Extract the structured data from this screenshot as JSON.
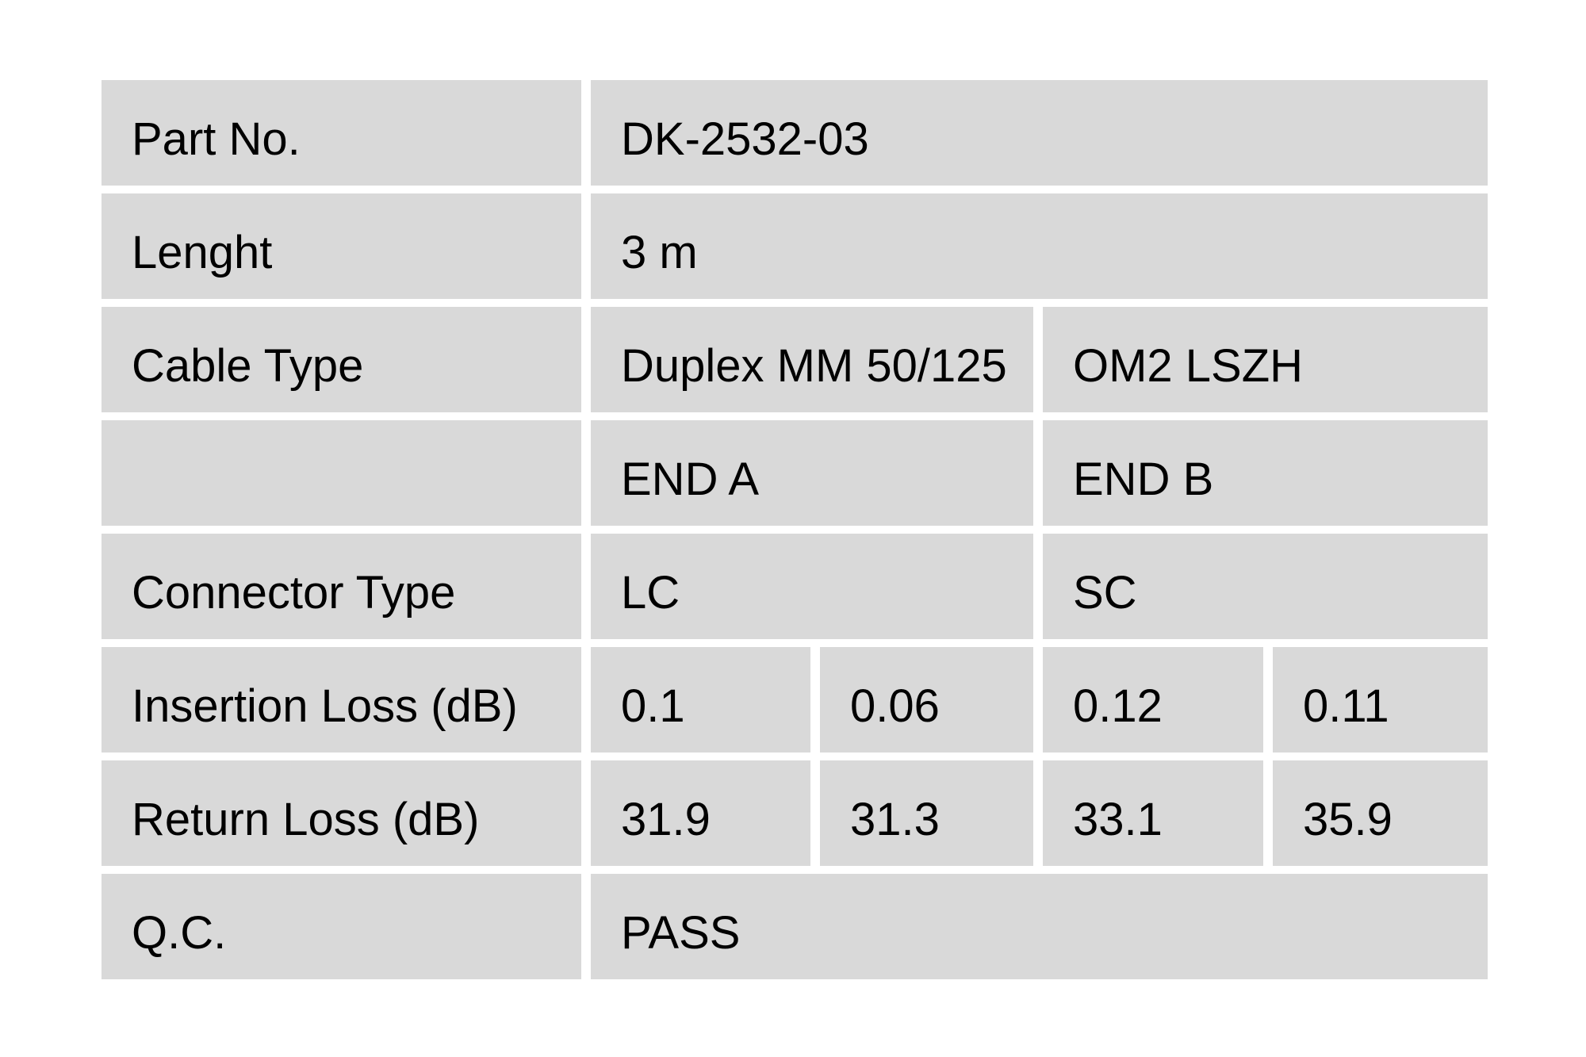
{
  "colors": {
    "page_background": "#ffffff",
    "cell_background": "#d9d9d9",
    "text": "#000000"
  },
  "table": {
    "rows": [
      {
        "label": "Part No.",
        "values": [
          {
            "text": "DK-2532-03"
          }
        ]
      },
      {
        "label": "Lenght",
        "values": [
          {
            "text": "3 m"
          }
        ]
      },
      {
        "label": "Cable Type",
        "values": [
          {
            "text": "Duplex MM 50/125"
          },
          {
            "text": "OM2 LSZH"
          }
        ]
      },
      {
        "label": "",
        "values": [
          {
            "text": "END A"
          },
          {
            "text": "END B"
          }
        ]
      },
      {
        "label": "Connector Type",
        "values": [
          {
            "text": "LC"
          },
          {
            "text": "SC"
          }
        ]
      },
      {
        "label": "Insertion Loss (dB)",
        "values": [
          {
            "text": "0.1"
          },
          {
            "text": "0.06"
          },
          {
            "text": "0.12"
          },
          {
            "text": "0.11"
          }
        ]
      },
      {
        "label": "Return Loss (dB)",
        "values": [
          {
            "text": "31.9"
          },
          {
            "text": "31.3"
          },
          {
            "text": "33.1"
          },
          {
            "text": "35.9"
          }
        ]
      },
      {
        "label": "Q.C.",
        "values": [
          {
            "text": "PASS"
          }
        ]
      }
    ]
  }
}
